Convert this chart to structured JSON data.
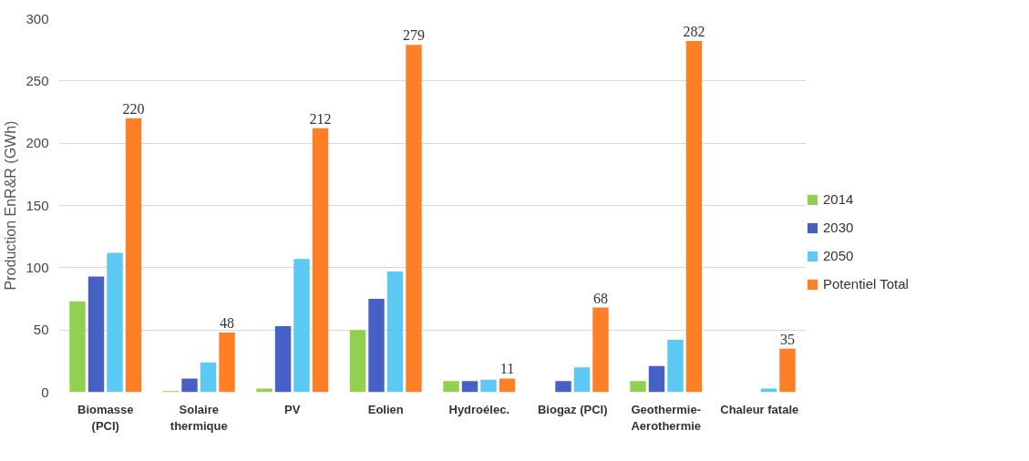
{
  "chart_data": {
    "type": "bar",
    "ylabel": "Production EnR&R (GWh)",
    "categories": [
      "Biomasse\n(PCI)",
      "Solaire\nthermique",
      "PV",
      "Eolien",
      "Hydroélec.",
      "Biogaz (PCI)",
      "Geothermie-\nAerothermie",
      "Chaleur fatale"
    ],
    "series": [
      {
        "name": "2014",
        "color": "#92d050",
        "values": [
          73,
          1,
          3,
          50,
          9,
          0,
          9,
          0
        ]
      },
      {
        "name": "2030",
        "color": "#4760c4",
        "values": [
          93,
          11,
          53,
          75,
          9,
          9,
          21,
          0
        ]
      },
      {
        "name": "2050",
        "color": "#5bc9f2",
        "values": [
          112,
          24,
          107,
          97,
          10,
          20,
          42,
          3
        ]
      },
      {
        "name": "Potentiel Total",
        "color": "#ff7f27",
        "values": [
          220,
          48,
          212,
          279,
          11,
          68,
          282,
          35
        ],
        "value_labels": [
          "220",
          "48",
          "212",
          "279",
          "11",
          "68",
          "282",
          "35"
        ]
      }
    ],
    "ylim": [
      0,
      300
    ],
    "yticks": [
      0,
      50,
      100,
      150,
      200,
      250,
      300
    ],
    "grid": "y",
    "legend": "right"
  }
}
